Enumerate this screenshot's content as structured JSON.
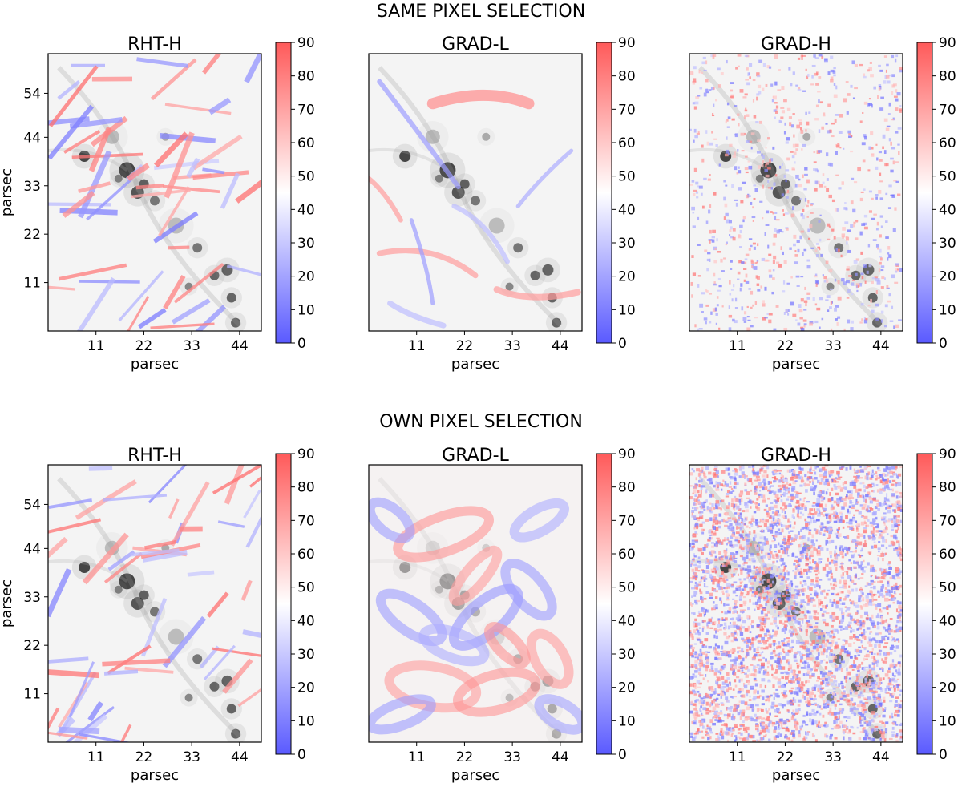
{
  "figure": {
    "sections": [
      {
        "title": "SAME PIXEL SELECTION"
      },
      {
        "title": "OWN PIXEL SELECTION"
      }
    ],
    "colors": {
      "colormap": [
        "#5a5aff",
        "#ffffff",
        "#ff5a5a"
      ],
      "background_map": [
        "#ffffff",
        "#000000"
      ]
    }
  },
  "chart_data": [
    {
      "type": "heatmap",
      "section": "SAME PIXEL SELECTION",
      "title": "RHT-H",
      "xlabel": "parsec",
      "ylabel": "parsec",
      "xticks": [
        11,
        22,
        33,
        44
      ],
      "yticks": [
        11,
        22,
        33,
        44,
        54
      ],
      "xlim": [
        0,
        49
      ],
      "ylim": [
        0,
        63
      ],
      "colorbar": {
        "ticks": [
          0,
          10,
          20,
          30,
          40,
          50,
          60,
          70,
          80,
          90
        ],
        "range": [
          0,
          90
        ]
      },
      "pattern": "sparse-streaks"
    },
    {
      "type": "heatmap",
      "section": "SAME PIXEL SELECTION",
      "title": "GRAD-L",
      "xlabel": "parsec",
      "ylabel": "",
      "xticks": [
        11,
        22,
        33,
        44
      ],
      "yticks": [],
      "xlim": [
        0,
        49
      ],
      "ylim": [
        0,
        63
      ],
      "colorbar": {
        "ticks": [
          0,
          10,
          20,
          30,
          40,
          50,
          60,
          70,
          80,
          90
        ],
        "range": [
          0,
          90
        ]
      },
      "pattern": "sparse-smooth"
    },
    {
      "type": "heatmap",
      "section": "SAME PIXEL SELECTION",
      "title": "GRAD-H",
      "xlabel": "parsec",
      "ylabel": "",
      "xticks": [
        11,
        22,
        33,
        44
      ],
      "yticks": [],
      "xlim": [
        0,
        49
      ],
      "ylim": [
        0,
        63
      ],
      "colorbar": {
        "ticks": [
          0,
          10,
          20,
          30,
          40,
          50,
          60,
          70,
          80,
          90
        ],
        "range": [
          0,
          90
        ]
      },
      "pattern": "sparse-noisy"
    },
    {
      "type": "heatmap",
      "section": "OWN PIXEL SELECTION",
      "title": "RHT-H",
      "xlabel": "parsec",
      "ylabel": "parsec",
      "xticks": [
        11,
        22,
        33,
        44
      ],
      "yticks": [
        11,
        22,
        33,
        44,
        54
      ],
      "xlim": [
        0,
        49
      ],
      "ylim": [
        0,
        63
      ],
      "colorbar": {
        "ticks": [
          0,
          10,
          20,
          30,
          40,
          50,
          60,
          70,
          80,
          90
        ],
        "range": [
          0,
          90
        ]
      },
      "pattern": "sparse-streaks"
    },
    {
      "type": "heatmap",
      "section": "OWN PIXEL SELECTION",
      "title": "GRAD-L",
      "xlabel": "parsec",
      "ylabel": "",
      "xticks": [
        11,
        22,
        33,
        44
      ],
      "yticks": [],
      "xlim": [
        0,
        49
      ],
      "ylim": [
        0,
        63
      ],
      "colorbar": {
        "ticks": [
          0,
          10,
          20,
          30,
          40,
          50,
          60,
          70,
          80,
          90
        ],
        "range": [
          0,
          90
        ]
      },
      "pattern": "dense-smooth"
    },
    {
      "type": "heatmap",
      "section": "OWN PIXEL SELECTION",
      "title": "GRAD-H",
      "xlabel": "parsec",
      "ylabel": "",
      "xticks": [
        11,
        22,
        33,
        44
      ],
      "yticks": [],
      "xlim": [
        0,
        49
      ],
      "ylim": [
        0,
        63
      ],
      "colorbar": {
        "ticks": [
          0,
          10,
          20,
          30,
          40,
          50,
          60,
          70,
          80,
          90
        ],
        "range": [
          0,
          90
        ]
      },
      "pattern": "dense-noisy"
    }
  ]
}
